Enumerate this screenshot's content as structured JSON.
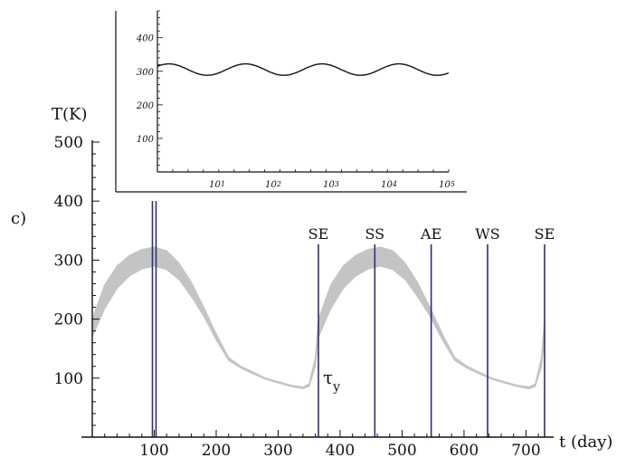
{
  "panel_label": "c)",
  "chart_data": [
    {
      "type": "area",
      "title": "",
      "xlabel": "t (day)",
      "ylabel": "T(K)",
      "xlim": [
        0,
        730
      ],
      "ylim": [
        0,
        500
      ],
      "x_ticks": [
        100,
        200,
        300,
        400,
        500,
        600,
        700
      ],
      "y_ticks": [
        100,
        200,
        300,
        400,
        500
      ],
      "grid": false,
      "band": {
        "color": "#c4c4c4",
        "x": [
          0,
          20,
          40,
          60,
          80,
          100,
          120,
          140,
          160,
          180,
          200,
          220,
          240,
          260,
          280,
          300,
          320,
          340,
          350,
          360,
          365,
          385,
          405,
          425,
          445,
          465,
          485,
          505,
          525,
          545,
          565,
          585,
          605,
          625,
          645,
          665,
          685,
          705,
          715,
          725,
          730
        ],
        "upper": [
          200,
          258,
          290,
          308,
          318,
          322,
          316,
          295,
          262,
          220,
          175,
          135,
          120,
          110,
          100,
          94,
          88,
          85,
          90,
          135,
          200,
          258,
          290,
          308,
          318,
          322,
          316,
          295,
          262,
          220,
          175,
          135,
          120,
          110,
          100,
          94,
          88,
          85,
          90,
          135,
          200
        ],
        "lower": [
          170,
          218,
          252,
          273,
          285,
          290,
          284,
          267,
          238,
          205,
          165,
          130,
          117,
          107,
          98,
          92,
          86,
          82,
          86,
          120,
          170,
          218,
          252,
          273,
          285,
          290,
          284,
          267,
          238,
          205,
          165,
          130,
          117,
          107,
          98,
          92,
          86,
          82,
          86,
          120,
          170
        ]
      },
      "event_lines": [
        {
          "x": 100,
          "label": ""
        },
        {
          "x": 365,
          "label": "SE"
        },
        {
          "x": 456,
          "label": "SS"
        },
        {
          "x": 547,
          "label": "AE"
        },
        {
          "x": 638,
          "label": "WS"
        },
        {
          "x": 730,
          "label": "SE"
        }
      ],
      "annotations": [
        {
          "text": "τ",
          "subscript": "y",
          "x": 365,
          "y": 60
        }
      ],
      "line_color": "#2b2f7a"
    },
    {
      "type": "line",
      "title": "",
      "xlabel": "",
      "ylabel": "",
      "xlim": [
        10000,
        105000
      ],
      "ylim": [
        0,
        480
      ],
      "x_tick_labels": [
        {
          "x": 25000,
          "mantissa": "10",
          "exponent": "1"
        },
        {
          "x": 50000,
          "mantissa": "10",
          "exponent": "2"
        },
        {
          "x": 75000,
          "mantissa": "10",
          "exponent": "3"
        },
        {
          "x": 100000,
          "mantissa": "10",
          "exponent": "4"
        },
        {
          "x": 125000,
          "mantissa": "10",
          "exponent": "5"
        }
      ],
      "y_ticks": [
        100,
        200,
        300,
        400
      ],
      "series": [
        {
          "mean": 305,
          "amplitude": 17,
          "period": 25000,
          "phase_start": 0,
          "color": "#111111"
        }
      ]
    }
  ]
}
